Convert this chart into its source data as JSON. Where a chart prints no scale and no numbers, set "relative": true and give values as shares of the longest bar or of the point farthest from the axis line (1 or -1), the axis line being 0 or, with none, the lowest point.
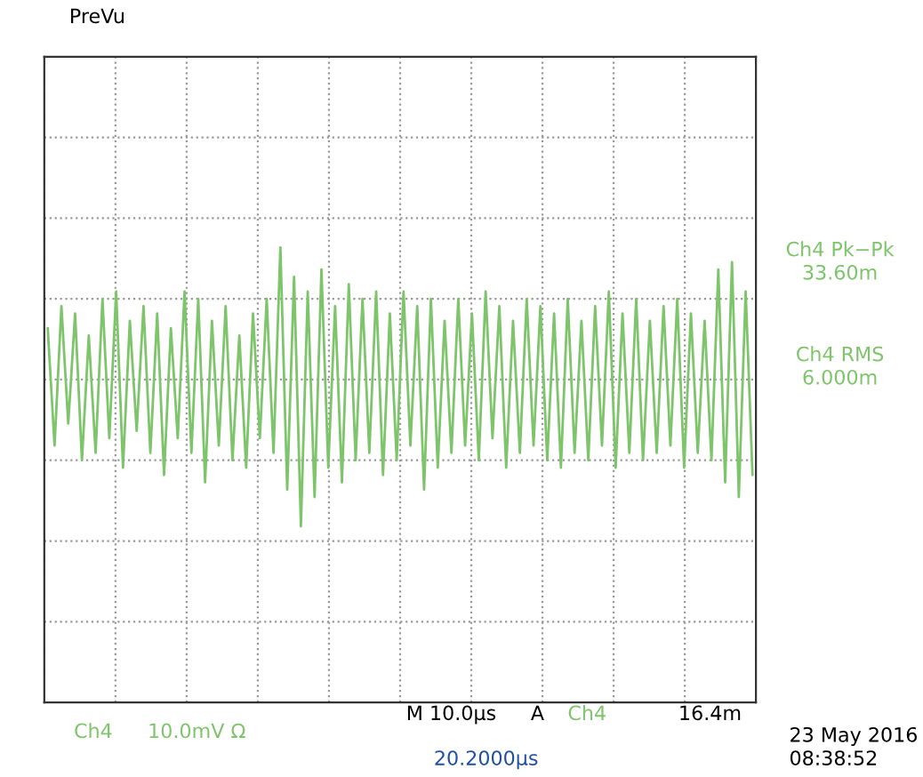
{
  "chart_data": {
    "type": "line",
    "relative": true,
    "grid": true,
    "tick_labels": false,
    "categories": [
      null,
      null,
      null,
      null,
      null,
      null,
      null,
      null,
      null,
      null,
      null,
      null,
      null,
      null,
      null,
      null,
      null,
      null,
      null,
      null,
      null,
      null,
      null,
      null,
      null,
      null,
      null,
      null,
      null,
      null,
      null,
      null,
      null,
      null,
      null,
      null,
      null,
      null,
      null,
      null,
      null,
      null,
      null,
      null,
      null,
      null,
      null,
      null,
      null,
      null,
      null,
      null,
      null,
      null,
      null,
      null,
      null,
      null,
      null,
      null,
      null,
      null,
      null,
      null,
      null,
      null,
      null,
      null,
      null,
      null,
      null,
      null,
      null,
      null,
      null,
      null,
      null,
      null,
      null,
      null,
      null,
      null,
      null,
      null,
      null,
      null,
      null,
      null,
      null,
      null,
      null,
      null,
      null,
      null,
      null,
      null,
      null,
      null,
      null,
      null,
      null,
      null,
      null,
      null
    ],
    "series": [
      {
        "color": "#7dc46a",
        "values": [
          0.35,
          -0.45,
          0.5,
          -0.3,
          0.45,
          -0.55,
          0.3,
          -0.5,
          0.55,
          -0.4,
          0.6,
          -0.6,
          0.4,
          -0.35,
          0.5,
          -0.5,
          0.45,
          -0.65,
          0.35,
          -0.4,
          0.6,
          -0.5,
          0.55,
          -0.7,
          0.4,
          -0.45,
          0.5,
          -0.55,
          0.3,
          -0.6,
          0.45,
          -0.4,
          0.55,
          -0.5,
          0.9,
          -0.75,
          0.7,
          -1.0,
          0.6,
          -0.8,
          0.75,
          -0.6,
          0.5,
          -0.7,
          0.65,
          -0.55,
          0.55,
          -0.5,
          0.6,
          -0.65,
          0.45,
          -0.55,
          0.6,
          -0.45,
          0.5,
          -0.75,
          0.55,
          -0.6,
          0.4,
          -0.5,
          0.55,
          -0.45,
          0.45,
          -0.55,
          0.6,
          -0.4,
          0.5,
          -0.6,
          0.4,
          -0.5,
          0.55,
          -0.45,
          0.5,
          -0.55,
          0.45,
          -0.6,
          0.55,
          -0.5,
          0.4,
          -0.55,
          0.5,
          -0.45,
          0.6,
          -0.6,
          0.45,
          -0.5,
          0.55,
          -0.55,
          0.4,
          -0.5,
          0.5,
          -0.45,
          0.55,
          -0.6,
          0.45,
          -0.5,
          0.4,
          -0.55,
          0.75,
          -0.7,
          0.8,
          -0.8,
          0.6,
          -0.65
        ]
      }
    ],
    "annotations": [
      "PreVu",
      "Ch4 Pk−Pk",
      "33.60m",
      "Ch4 RMS",
      "6.000m",
      "M 10.0µs",
      "A",
      "Ch4",
      "16.4m",
      "Ch4",
      "10.0mV Ω",
      "20.2000µs",
      "23 May 2016",
      "08:38:52"
    ]
  }
}
